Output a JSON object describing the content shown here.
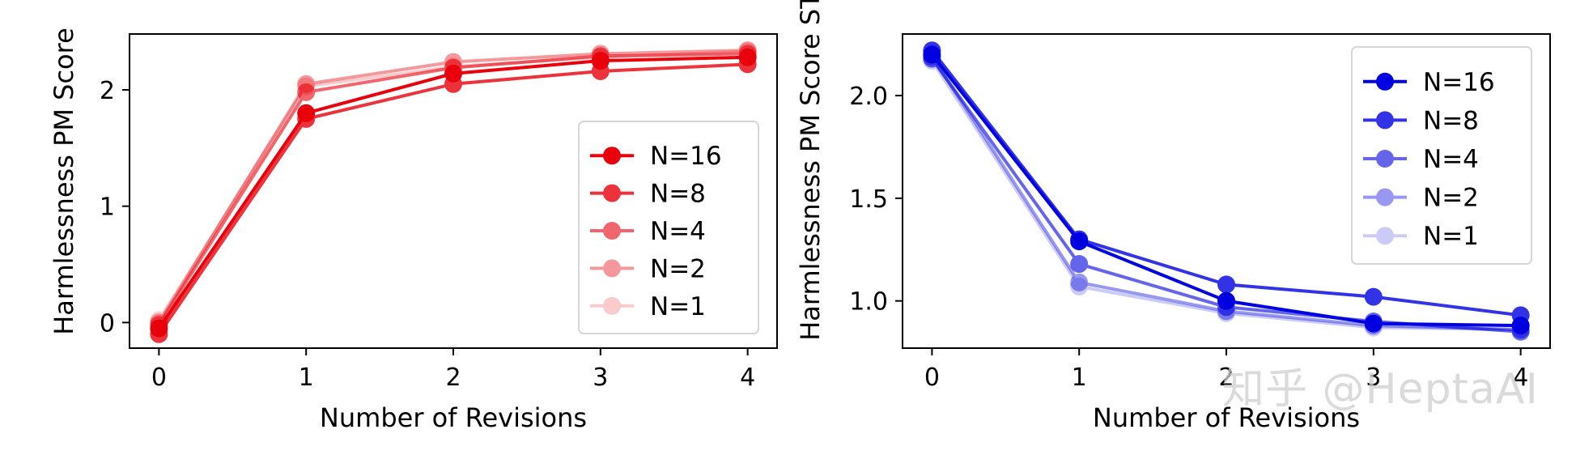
{
  "chart_data": [
    {
      "type": "line",
      "title": "",
      "xlabel": "Number of Revisions",
      "ylabel": "Harmlessness PM Score",
      "x": [
        0,
        1,
        2,
        3,
        4
      ],
      "xticks": [
        0,
        1,
        2,
        3,
        4
      ],
      "yticks": [
        0,
        1,
        2
      ],
      "xlim": [
        -0.2,
        4.2
      ],
      "ylim": [
        -0.22,
        2.48
      ],
      "base_color": "#e8000b",
      "legend_location": "lower-right",
      "series": [
        {
          "name": "N=16",
          "opacity": 1.0,
          "values": [
            -0.05,
            1.8,
            2.14,
            2.25,
            2.28
          ]
        },
        {
          "name": "N=8",
          "opacity": 0.8,
          "values": [
            -0.1,
            1.75,
            2.05,
            2.16,
            2.22
          ]
        },
        {
          "name": "N=4",
          "opacity": 0.6,
          "values": [
            -0.02,
            1.98,
            2.19,
            2.29,
            2.31
          ]
        },
        {
          "name": "N=2",
          "opacity": 0.4,
          "values": [
            0.0,
            2.05,
            2.24,
            2.31,
            2.34
          ]
        },
        {
          "name": "N=1",
          "opacity": 0.2,
          "values": [
            0.02,
            2.03,
            2.2,
            2.28,
            2.33
          ]
        }
      ]
    },
    {
      "type": "line",
      "title": "",
      "xlabel": "Number of Revisions",
      "ylabel": "Harmlessness PM Score ST",
      "x": [
        0,
        1,
        2,
        3,
        4
      ],
      "xticks": [
        0,
        1,
        2,
        3,
        4
      ],
      "yticks": [
        1.0,
        1.5,
        2.0
      ],
      "ytick_labels": [
        "1.0",
        "1.5",
        "2.0"
      ],
      "xlim": [
        -0.2,
        4.2
      ],
      "ylim": [
        0.77,
        2.3
      ],
      "base_color": "#0000e0",
      "legend_location": "upper-right",
      "series": [
        {
          "name": "N=16",
          "opacity": 1.0,
          "values": [
            2.2,
            1.29,
            1.0,
            0.89,
            0.88
          ]
        },
        {
          "name": "N=8",
          "opacity": 0.8,
          "values": [
            2.22,
            1.3,
            1.08,
            1.02,
            0.93
          ]
        },
        {
          "name": "N=4",
          "opacity": 0.6,
          "values": [
            2.18,
            1.18,
            0.97,
            0.9,
            0.85
          ]
        },
        {
          "name": "N=2",
          "opacity": 0.4,
          "values": [
            2.19,
            1.09,
            0.95,
            0.88,
            0.86
          ]
        },
        {
          "name": "N=1",
          "opacity": 0.2,
          "values": [
            2.17,
            1.07,
            0.94,
            0.87,
            0.86
          ]
        }
      ]
    }
  ],
  "watermark": "知乎 @HeptaAI"
}
